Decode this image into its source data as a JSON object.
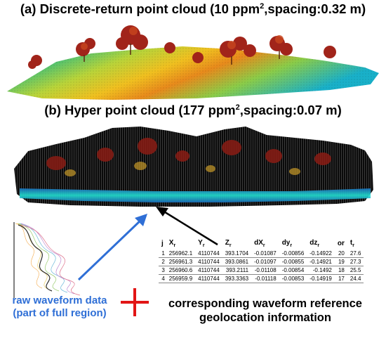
{
  "title_a": {
    "main": "(a) Discrete-return point cloud (10 ppm",
    "sup": "2",
    "tail": ",spacing:0.32 m)"
  },
  "title_b": {
    "main": "(b) Hyper point cloud (177 ppm",
    "sup": "2",
    "tail": ",spacing:0.07 m)"
  },
  "table": {
    "headers": {
      "j": "j",
      "x": "X",
      "x_sub": "r",
      "y": "Y",
      "y_sub": "r",
      "z": "Z",
      "z_sub": "r",
      "dx": "dX",
      "dx_sub": "r",
      "dy": "dy",
      "dy_sub": "r",
      "dz": "dz",
      "dz_sub": "r",
      "or": "or",
      "t": "t",
      "t_sub": "r"
    },
    "rows": [
      {
        "j": "1",
        "x": "256962.1",
        "y": "4110744",
        "z": "393.1704",
        "dx": "-0.01087",
        "dy": "-0.00856",
        "dz": "-0.14922",
        "or": "20",
        "t": "27.6"
      },
      {
        "j": "2",
        "x": "256961.3",
        "y": "4110744",
        "z": "393.0861",
        "dx": "-0.01097",
        "dy": "-0.00855",
        "dz": "-0.14921",
        "or": "19",
        "t": "27.3"
      },
      {
        "j": "3",
        "x": "256960.6",
        "y": "4110744",
        "z": "393.2111",
        "dx": "-0.01108",
        "dy": "-0.00854",
        "dz": "-0.1492",
        "or": "18",
        "t": "25.5"
      },
      {
        "j": "4",
        "x": "256959.9",
        "y": "4110744",
        "z": "393.3363",
        "dx": "-0.01118",
        "dy": "-0.00853",
        "dz": "-0.14919",
        "or": "17",
        "t": "24.4"
      }
    ]
  },
  "raw_label": {
    "line1": "raw waveform data",
    "line2": "(part of full region)"
  },
  "corr_label": {
    "line1": "corresponding waveform reference",
    "line2": "geolocation information"
  },
  "colors": {
    "arrow_blue": "#2f6fd6",
    "plus_red": "#e21515",
    "label_blue": "#2f6fd6"
  }
}
